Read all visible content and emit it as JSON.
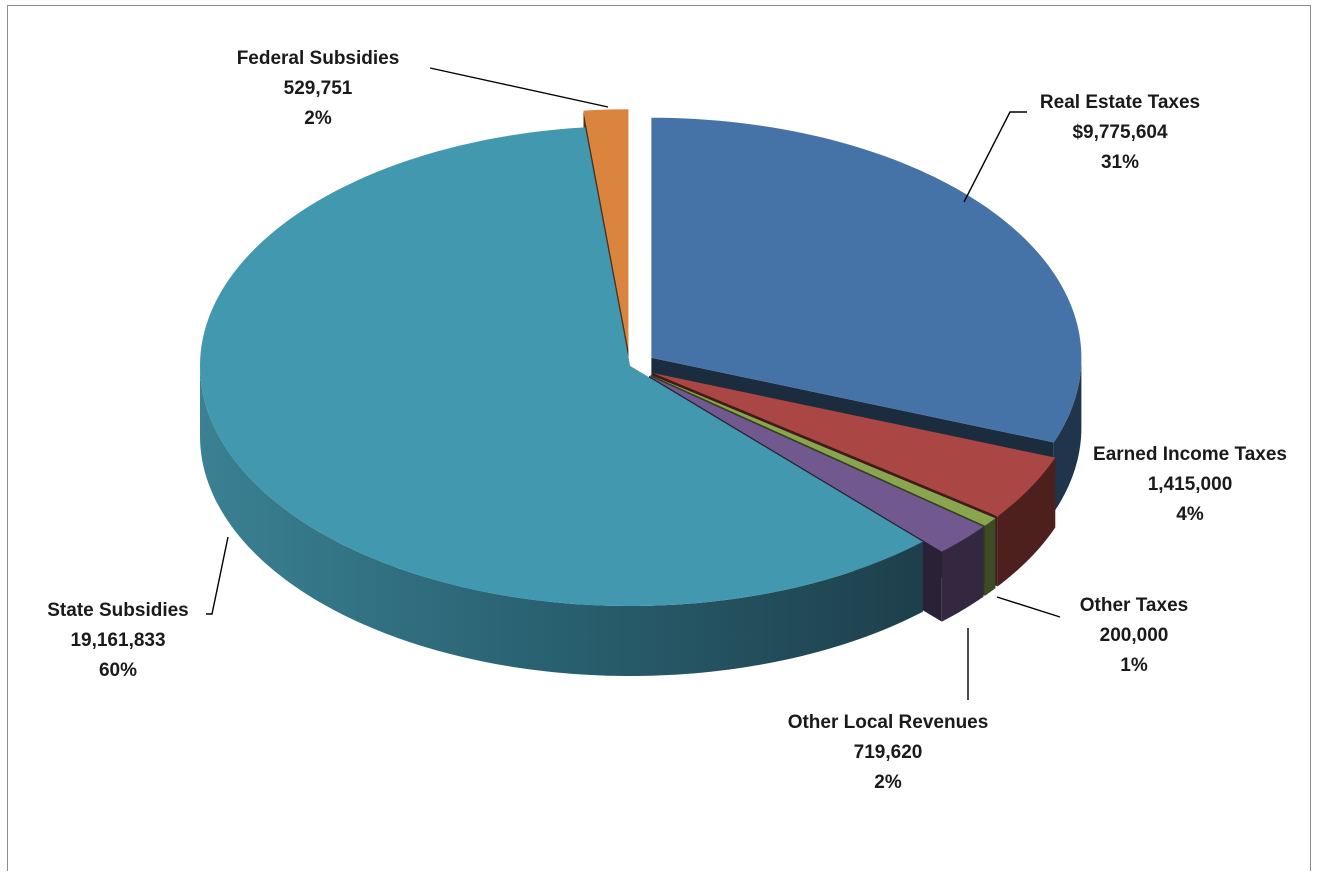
{
  "chart_data": {
    "type": "pie",
    "title": "",
    "style": "3d-exploded",
    "slices": [
      {
        "label": "Real Estate Taxes",
        "value_text": "$9,775,604",
        "value": 9775604,
        "percent_text": "31%",
        "color": "#4673a7"
      },
      {
        "label": "Earned Income Taxes",
        "value_text": "1,415,000",
        "value": 1415000,
        "percent_text": "4%",
        "color": "#aa4643"
      },
      {
        "label": "Other Taxes",
        "value_text": "200,000",
        "value": 200000,
        "percent_text": "1%",
        "color": "#89a54e"
      },
      {
        "label": "Other Local Revenues",
        "value_text": "719,620",
        "value": 719620,
        "percent_text": "2%",
        "color": "#71588f"
      },
      {
        "label": "State Subsidies",
        "value_text": "19,161,833",
        "value": 19161833,
        "percent_text": "60%",
        "color": "#4198af"
      },
      {
        "label": "Federal Subsidies",
        "value_text": "529,751",
        "value": 529751,
        "percent_text": "2%",
        "color": "#db843d"
      }
    ]
  }
}
